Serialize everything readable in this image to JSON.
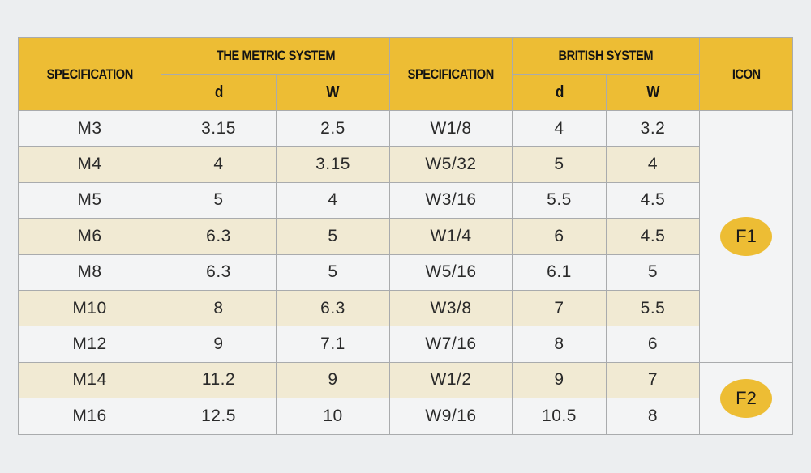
{
  "header": {
    "spec_metric": "SPECIFICATION",
    "metric_system": "THE METRIC SYSTEM",
    "spec_british": "SPECIFICATION",
    "british_system": "BRITISH SYSTEM",
    "icon": "ICON",
    "metric_d": "d",
    "metric_w": "W",
    "british_d": "d",
    "british_w": "W"
  },
  "rows": [
    {
      "m_spec": "M3",
      "m_d": "3.15",
      "m_w": "2.5",
      "b_spec": "W1/8",
      "b_d": "4",
      "b_w": "3.2"
    },
    {
      "m_spec": "M4",
      "m_d": "4",
      "m_w": "3.15",
      "b_spec": "W5/32",
      "b_d": "5",
      "b_w": "4"
    },
    {
      "m_spec": "M5",
      "m_d": "5",
      "m_w": "4",
      "b_spec": "W3/16",
      "b_d": "5.5",
      "b_w": "4.5"
    },
    {
      "m_spec": "M6",
      "m_d": "6.3",
      "m_w": "5",
      "b_spec": "W1/4",
      "b_d": "6",
      "b_w": "4.5"
    },
    {
      "m_spec": "M8",
      "m_d": "6.3",
      "m_w": "5",
      "b_spec": "W5/16",
      "b_d": "6.1",
      "b_w": "5"
    },
    {
      "m_spec": "M10",
      "m_d": "8",
      "m_w": "6.3",
      "b_spec": "W3/8",
      "b_d": "7",
      "b_w": "5.5"
    },
    {
      "m_spec": "M12",
      "m_d": "9",
      "m_w": "7.1",
      "b_spec": "W7/16",
      "b_d": "8",
      "b_w": "6"
    },
    {
      "m_spec": "M14",
      "m_d": "11.2",
      "m_w": "9",
      "b_spec": "W1/2",
      "b_d": "9",
      "b_w": "7"
    },
    {
      "m_spec": "M16",
      "m_d": "12.5",
      "m_w": "10",
      "b_spec": "W9/16",
      "b_d": "10.5",
      "b_w": "8"
    }
  ],
  "icons": {
    "f1": "F1",
    "f2": "F2"
  },
  "colors": {
    "header_bg": "#edbd34",
    "badge_bg": "#edbd34",
    "row_alt": "#f1ead3",
    "row_plain": "#f3f4f5"
  }
}
